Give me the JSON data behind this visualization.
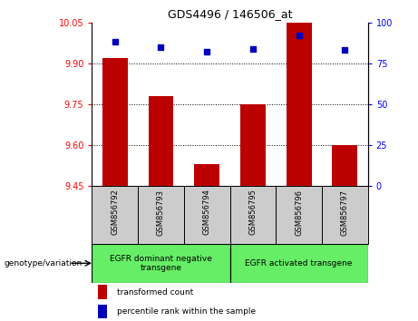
{
  "title": "GDS4496 / 146506_at",
  "samples": [
    "GSM856792",
    "GSM856793",
    "GSM856794",
    "GSM856795",
    "GSM856796",
    "GSM856797"
  ],
  "transformed_count": [
    9.92,
    9.78,
    9.53,
    9.75,
    10.05,
    9.6
  ],
  "percentile_rank": [
    88,
    85,
    82,
    84,
    92,
    83
  ],
  "ylim_left": [
    9.45,
    10.05
  ],
  "ylim_right": [
    0,
    100
  ],
  "yticks_left": [
    9.45,
    9.6,
    9.75,
    9.9,
    10.05
  ],
  "yticks_right": [
    0,
    25,
    50,
    75,
    100
  ],
  "bar_color": "#bb0000",
  "dot_color": "#0000bb",
  "bar_width": 0.55,
  "baseline": 9.45,
  "group1_indices": [
    0,
    1,
    2
  ],
  "group2_indices": [
    3,
    4,
    5
  ],
  "group1_label": "EGFR dominant negative\ntransgene",
  "group2_label": "EGFR activated transgene",
  "group_color": "#66ee66",
  "sample_box_color": "#cccccc",
  "legend_items": [
    {
      "color": "#bb0000",
      "label": "transformed count"
    },
    {
      "color": "#0000bb",
      "label": "percentile rank within the sample"
    }
  ],
  "genotype_label": "genotype/variation",
  "background_color": "#ffffff"
}
